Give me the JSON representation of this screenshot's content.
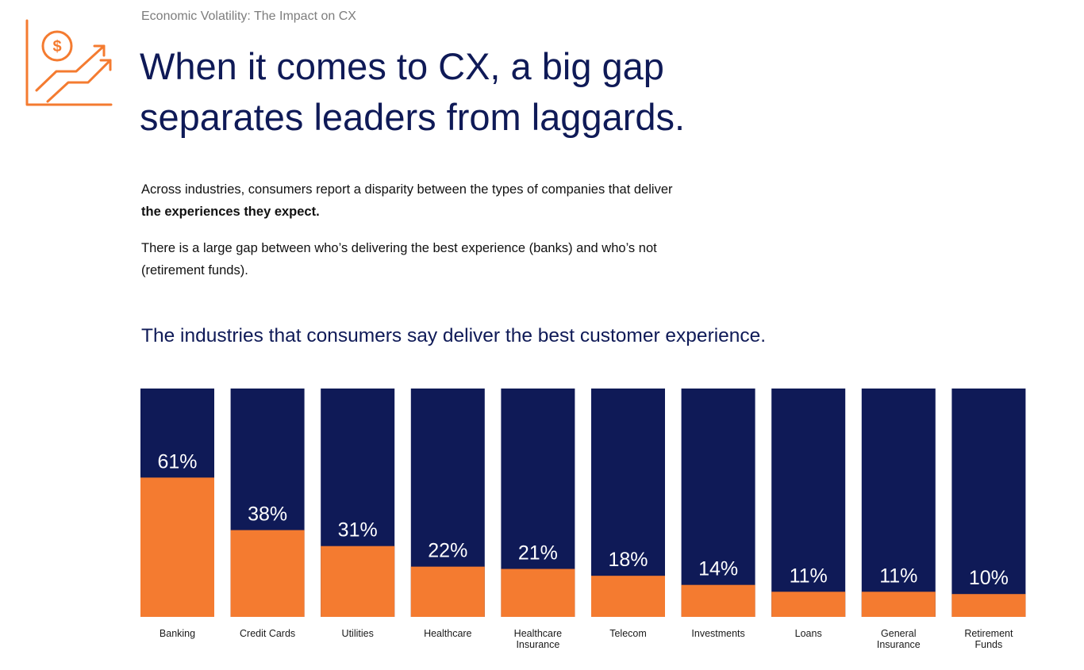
{
  "eyebrow": "Economic Volatility: The Impact on CX",
  "headline": "When it comes to CX, a big gap separates leaders from laggards.",
  "paragraph1": {
    "text": "Across industries, consumers report a disparity between the types of companies that deliver ",
    "bold": "the experiences they expect."
  },
  "paragraph2": "There is a large gap between who’s delivering the best experience (banks) and who’s not (retirement funds).",
  "icons": {
    "logo": "dollar-growth-chart-icon"
  },
  "colors": {
    "navy": "#0f1a57",
    "orange": "#f47b30"
  },
  "chart_data": {
    "type": "bar",
    "title": "The industries that consumers say deliver the best customer experience.",
    "categories": [
      "Banking",
      "Credit Cards",
      "Utilities",
      "Healthcare",
      "Healthcare Insurance",
      "Telecom",
      "Investments",
      "Loans",
      "General Insurance",
      "Retirement Funds"
    ],
    "category_lines": [
      [
        "Banking"
      ],
      [
        "Credit Cards"
      ],
      [
        "Utilities"
      ],
      [
        "Healthcare"
      ],
      [
        "Healthcare",
        "Insurance"
      ],
      [
        "Telecom"
      ],
      [
        "Investments"
      ],
      [
        "Loans"
      ],
      [
        "General",
        "Insurance"
      ],
      [
        "Retirement",
        "Funds"
      ]
    ],
    "values": [
      61,
      38,
      31,
      22,
      21,
      18,
      14,
      11,
      11,
      10
    ],
    "value_labels": [
      "61%",
      "38%",
      "31%",
      "22%",
      "21%",
      "18%",
      "14%",
      "11%",
      "11%",
      "10%"
    ],
    "unit": "%",
    "ylim": [
      0,
      100
    ],
    "grid": false,
    "legend": "none"
  }
}
